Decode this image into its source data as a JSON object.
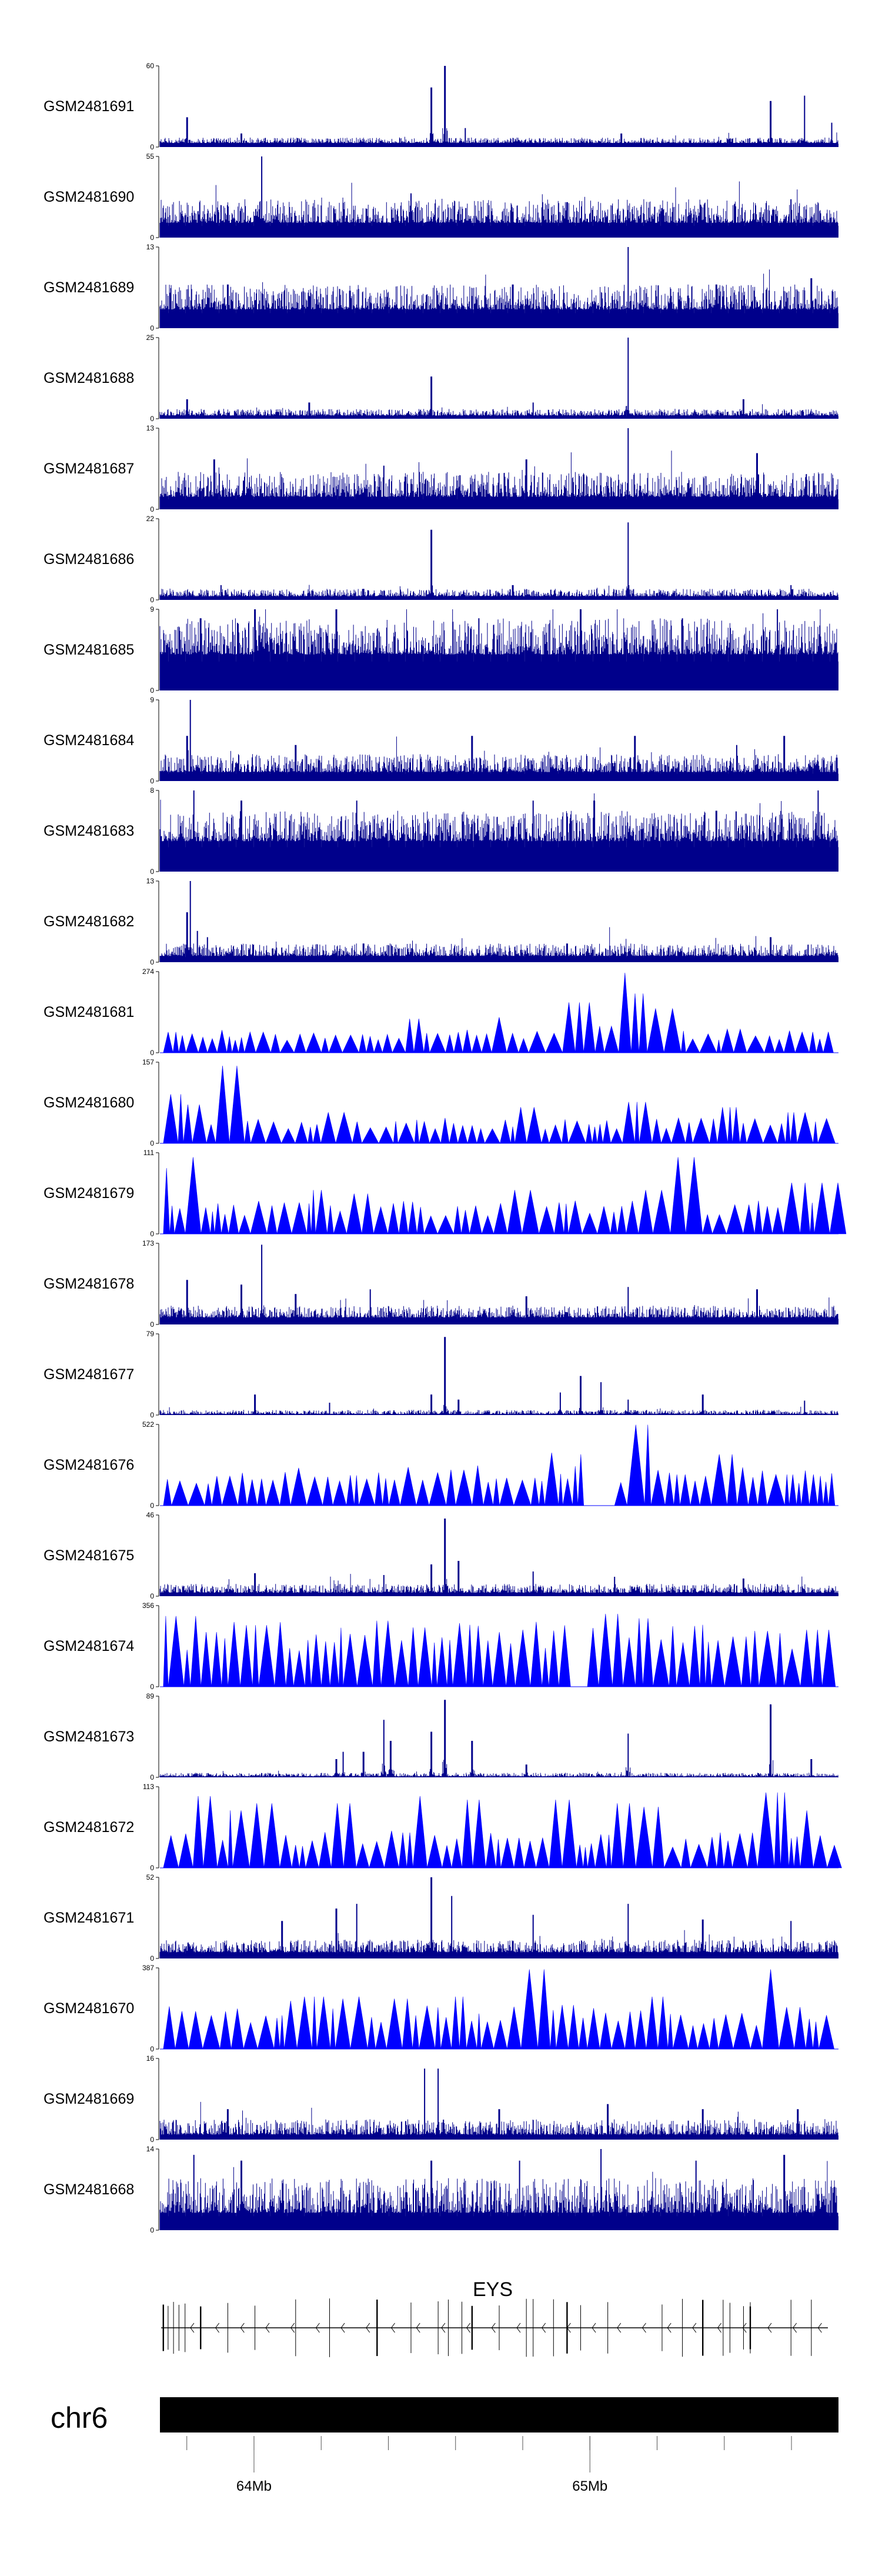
{
  "chart_data": {
    "type": "area",
    "colors": {
      "bars": "#00008b",
      "peaks": "#0000ff",
      "axis": "#000000",
      "gene": "#000000"
    },
    "tracks": [
      {
        "label": "GSM2481691",
        "ymax": 60,
        "ymin": 0,
        "style": "bars",
        "baseline": 3,
        "noise": 4,
        "spikes": [
          [
            0.04,
            22
          ],
          [
            0.12,
            10
          ],
          [
            0.4,
            44
          ],
          [
            0.42,
            60
          ],
          [
            0.45,
            14
          ],
          [
            0.68,
            10
          ],
          [
            0.9,
            34
          ],
          [
            0.95,
            38
          ],
          [
            0.99,
            18
          ]
        ]
      },
      {
        "label": "GSM2481690",
        "ymax": 55,
        "ymin": 0,
        "style": "bars",
        "baseline": 10,
        "noise": 16,
        "spikes": [
          [
            0.09,
            22
          ],
          [
            0.15,
            55
          ],
          [
            0.37,
            30
          ],
          [
            0.6,
            24
          ],
          [
            0.74,
            20
          ],
          [
            0.93,
            26
          ]
        ]
      },
      {
        "label": "GSM2481689",
        "ymax": 13,
        "ymin": 0,
        "style": "bars",
        "baseline": 3,
        "noise": 4,
        "spikes": [
          [
            0.1,
            7
          ],
          [
            0.28,
            6
          ],
          [
            0.52,
            7
          ],
          [
            0.69,
            13
          ],
          [
            0.82,
            7
          ],
          [
            0.96,
            8
          ]
        ]
      },
      {
        "label": "GSM2481688",
        "ymax": 25,
        "ymin": 0,
        "style": "bars",
        "baseline": 1,
        "noise": 2,
        "spikes": [
          [
            0.04,
            6
          ],
          [
            0.22,
            5
          ],
          [
            0.4,
            13
          ],
          [
            0.55,
            5
          ],
          [
            0.69,
            25
          ],
          [
            0.86,
            6
          ]
        ]
      },
      {
        "label": "GSM2481687",
        "ymax": 13,
        "ymin": 0,
        "style": "bars",
        "baseline": 2,
        "noise": 4,
        "spikes": [
          [
            0.08,
            8
          ],
          [
            0.33,
            7
          ],
          [
            0.54,
            8
          ],
          [
            0.69,
            13
          ],
          [
            0.88,
            9
          ]
        ]
      },
      {
        "label": "GSM2481686",
        "ymax": 22,
        "ymin": 0,
        "style": "bars",
        "baseline": 1,
        "noise": 2,
        "spikes": [
          [
            0.09,
            4
          ],
          [
            0.3,
            3
          ],
          [
            0.4,
            19
          ],
          [
            0.52,
            4
          ],
          [
            0.69,
            21
          ],
          [
            0.93,
            4
          ]
        ]
      },
      {
        "label": "GSM2481685",
        "ymax": 9,
        "ymin": 0,
        "style": "bars",
        "baseline": 4,
        "noise": 4,
        "spikes": [
          [
            0.06,
            8
          ],
          [
            0.14,
            9
          ],
          [
            0.26,
            9
          ],
          [
            0.47,
            8
          ],
          [
            0.62,
            9
          ],
          [
            0.77,
            8
          ],
          [
            0.91,
            9
          ]
        ]
      },
      {
        "label": "GSM2481684",
        "ymax": 9,
        "ymin": 0,
        "style": "bars",
        "baseline": 1,
        "noise": 2,
        "spikes": [
          [
            0.04,
            5
          ],
          [
            0.045,
            9
          ],
          [
            0.2,
            4
          ],
          [
            0.46,
            5
          ],
          [
            0.7,
            5
          ],
          [
            0.85,
            4
          ],
          [
            0.92,
            5
          ]
        ]
      },
      {
        "label": "GSM2481683",
        "ymax": 8,
        "ymin": 0,
        "style": "bars",
        "baseline": 3,
        "noise": 3,
        "spikes": [
          [
            0.05,
            8
          ],
          [
            0.12,
            7
          ],
          [
            0.29,
            7
          ],
          [
            0.55,
            7
          ],
          [
            0.64,
            7
          ],
          [
            0.82,
            6
          ],
          [
            0.97,
            8
          ]
        ]
      },
      {
        "label": "GSM2481682",
        "ymax": 13,
        "ymin": 0,
        "style": "bars",
        "baseline": 1,
        "noise": 2,
        "spikes": [
          [
            0.04,
            8
          ],
          [
            0.045,
            13
          ],
          [
            0.055,
            5
          ],
          [
            0.07,
            4
          ],
          [
            0.3,
            3
          ],
          [
            0.6,
            3
          ],
          [
            0.9,
            4
          ]
        ]
      },
      {
        "label": "GSM2481681",
        "ymax": 274,
        "ymin": 0,
        "style": "peaks",
        "baseline": 0,
        "noise": 60,
        "spikes": [
          [
            0.02,
            70
          ],
          [
            0.14,
            70
          ],
          [
            0.26,
            60
          ],
          [
            0.38,
            115
          ],
          [
            0.5,
            120
          ],
          [
            0.62,
            170
          ],
          [
            0.65,
            90
          ],
          [
            0.69,
            270
          ],
          [
            0.71,
            200
          ],
          [
            0.74,
            150
          ],
          [
            0.85,
            80
          ],
          [
            0.96,
            70
          ]
        ]
      },
      {
        "label": "GSM2481680",
        "ymax": 157,
        "ymin": 0,
        "style": "peaks",
        "baseline": 0,
        "noise": 38,
        "spikes": [
          [
            0.03,
            95
          ],
          [
            0.05,
            75
          ],
          [
            0.1,
            150
          ],
          [
            0.25,
            60
          ],
          [
            0.53,
            90
          ],
          [
            0.54,
            70
          ],
          [
            0.7,
            80
          ],
          [
            0.84,
            70
          ],
          [
            0.93,
            60
          ]
        ]
      },
      {
        "label": "GSM2481679",
        "ymax": 111,
        "ymin": 0,
        "style": "peaks",
        "baseline": 0,
        "noise": 35,
        "spikes": [
          [
            0.01,
            90
          ],
          [
            0.05,
            105
          ],
          [
            0.23,
            60
          ],
          [
            0.29,
            55
          ],
          [
            0.53,
            60
          ],
          [
            0.73,
            60
          ],
          [
            0.77,
            105
          ],
          [
            0.86,
            40
          ],
          [
            0.95,
            70
          ],
          [
            0.98,
            70
          ]
        ]
      },
      {
        "label": "GSM2481678",
        "ymax": 173,
        "ymin": 0,
        "style": "bars",
        "baseline": 15,
        "noise": 25,
        "spikes": [
          [
            0.04,
            95
          ],
          [
            0.12,
            85
          ],
          [
            0.15,
            170
          ],
          [
            0.2,
            65
          ],
          [
            0.31,
            75
          ],
          [
            0.54,
            60
          ],
          [
            0.69,
            80
          ],
          [
            0.88,
            75
          ]
        ]
      },
      {
        "label": "GSM2481677",
        "ymax": 79,
        "ymin": 0,
        "style": "bars",
        "baseline": 1,
        "noise": 4,
        "spikes": [
          [
            0.14,
            20
          ],
          [
            0.25,
            12
          ],
          [
            0.4,
            20
          ],
          [
            0.42,
            76
          ],
          [
            0.44,
            15
          ],
          [
            0.59,
            22
          ],
          [
            0.62,
            38
          ],
          [
            0.65,
            32
          ],
          [
            0.69,
            15
          ],
          [
            0.8,
            20
          ],
          [
            0.95,
            14
          ]
        ]
      },
      {
        "label": "GSM2481676",
        "ymax": 522,
        "ymin": 0,
        "style": "peaks",
        "baseline": 0,
        "noise": 200,
        "gap": [
          0.63,
          0.67
        ],
        "spikes": [
          [
            0.09,
            190
          ],
          [
            0.24,
            185
          ],
          [
            0.45,
            230
          ],
          [
            0.58,
            340
          ],
          [
            0.62,
            330
          ],
          [
            0.71,
            520
          ],
          [
            0.77,
            200
          ],
          [
            0.84,
            330
          ],
          [
            0.93,
            200
          ]
        ]
      },
      {
        "label": "GSM2481675",
        "ymax": 46,
        "ymin": 0,
        "style": "bars",
        "baseline": 2,
        "noise": 5,
        "spikes": [
          [
            0.14,
            13
          ],
          [
            0.33,
            12
          ],
          [
            0.4,
            18
          ],
          [
            0.42,
            44
          ],
          [
            0.44,
            20
          ],
          [
            0.55,
            14
          ],
          [
            0.67,
            11
          ],
          [
            0.86,
            10
          ]
        ]
      },
      {
        "label": "GSM2481674",
        "ymax": 356,
        "ymin": 0,
        "style": "peaks",
        "baseline": 0,
        "noise": 220,
        "gap": [
          0.61,
          0.63
        ],
        "spikes": [
          [
            0.01,
            310
          ],
          [
            0.06,
            310
          ],
          [
            0.08,
            240
          ],
          [
            0.14,
            270
          ],
          [
            0.33,
            290
          ],
          [
            0.38,
            260
          ],
          [
            0.5,
            240
          ],
          [
            0.62,
            220
          ],
          [
            0.66,
            320
          ],
          [
            0.71,
            300
          ],
          [
            0.86,
            220
          ],
          [
            0.88,
            245
          ],
          [
            0.97,
            250
          ],
          [
            0.99,
            250
          ]
        ]
      },
      {
        "label": "GSM2481673",
        "ymax": 89,
        "ymin": 0,
        "style": "bars",
        "baseline": 1,
        "noise": 4,
        "spikes": [
          [
            0.26,
            20
          ],
          [
            0.27,
            28
          ],
          [
            0.3,
            28
          ],
          [
            0.33,
            63
          ],
          [
            0.34,
            40
          ],
          [
            0.4,
            50
          ],
          [
            0.42,
            85
          ],
          [
            0.46,
            40
          ],
          [
            0.54,
            14
          ],
          [
            0.69,
            48
          ],
          [
            0.9,
            80
          ],
          [
            0.96,
            20
          ]
        ]
      },
      {
        "label": "GSM2481672",
        "ymax": 113,
        "ymin": 0,
        "style": "peaks",
        "baseline": 0,
        "noise": 40,
        "spikes": [
          [
            0.07,
            100
          ],
          [
            0.11,
            80
          ],
          [
            0.15,
            90
          ],
          [
            0.27,
            90
          ],
          [
            0.38,
            100
          ],
          [
            0.46,
            95
          ],
          [
            0.59,
            95
          ],
          [
            0.69,
            90
          ],
          [
            0.73,
            85
          ],
          [
            0.91,
            105
          ],
          [
            0.95,
            80
          ]
        ]
      },
      {
        "label": "GSM2481671",
        "ymax": 52,
        "ymin": 0,
        "style": "bars",
        "baseline": 4,
        "noise": 8,
        "spikes": [
          [
            0.18,
            24
          ],
          [
            0.26,
            32
          ],
          [
            0.29,
            35
          ],
          [
            0.4,
            52
          ],
          [
            0.43,
            40
          ],
          [
            0.55,
            28
          ],
          [
            0.69,
            35
          ],
          [
            0.8,
            25
          ],
          [
            0.93,
            24
          ]
        ]
      },
      {
        "label": "GSM2481670",
        "ymax": 387,
        "ymin": 0,
        "style": "peaks",
        "baseline": 0,
        "noise": 160,
        "spikes": [
          [
            0.04,
            180
          ],
          [
            0.19,
            230
          ],
          [
            0.23,
            250
          ],
          [
            0.27,
            240
          ],
          [
            0.3,
            250
          ],
          [
            0.35,
            240
          ],
          [
            0.44,
            250
          ],
          [
            0.55,
            380
          ],
          [
            0.61,
            210
          ],
          [
            0.74,
            250
          ],
          [
            0.9,
            380
          ],
          [
            0.93,
            200
          ]
        ]
      },
      {
        "label": "GSM2481669",
        "ymax": 16,
        "ymin": 0,
        "style": "bars",
        "baseline": 1,
        "noise": 3,
        "spikes": [
          [
            0.1,
            6
          ],
          [
            0.39,
            14
          ],
          [
            0.41,
            14
          ],
          [
            0.5,
            6
          ],
          [
            0.66,
            7
          ],
          [
            0.8,
            6
          ],
          [
            0.94,
            6
          ]
        ]
      },
      {
        "label": "GSM2481668",
        "ymax": 14,
        "ymin": 0,
        "style": "bars",
        "baseline": 3,
        "noise": 6,
        "spikes": [
          [
            0.05,
            13
          ],
          [
            0.12,
            12
          ],
          [
            0.4,
            12
          ],
          [
            0.53,
            12
          ],
          [
            0.65,
            14
          ],
          [
            0.79,
            12
          ],
          [
            0.92,
            13
          ]
        ]
      }
    ],
    "gene": {
      "name": "EYS",
      "strand": "-"
    },
    "chromosome": {
      "name": "chr6",
      "start_mb": 63.72,
      "end_mb": 65.74
    },
    "x_axis": {
      "ticks": [
        {
          "value": 64,
          "label": "64Mb"
        },
        {
          "value": 65,
          "label": "65Mb"
        }
      ],
      "minor_step_mb": 0.2
    }
  }
}
